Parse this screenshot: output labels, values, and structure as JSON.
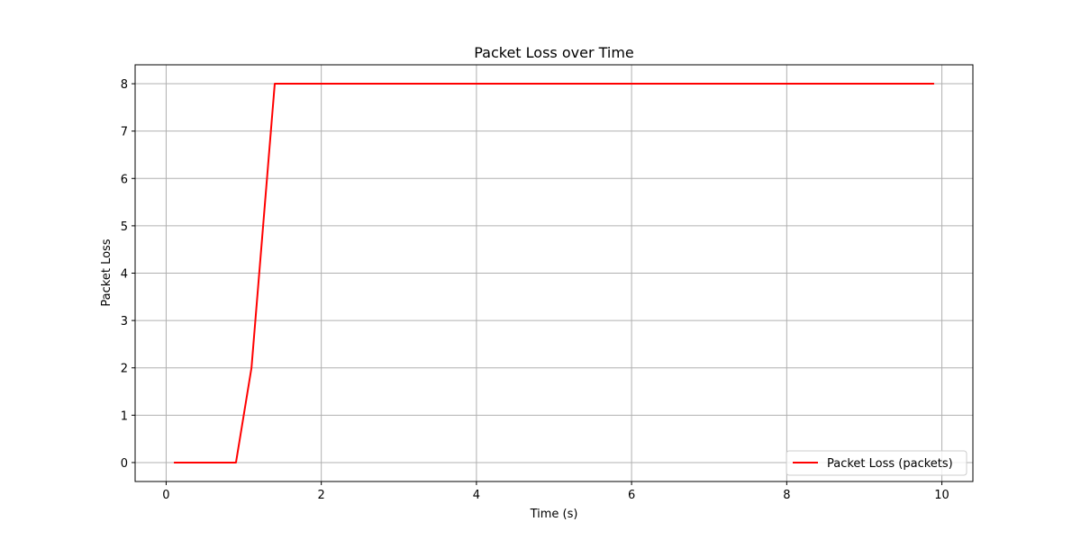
{
  "chart_data": {
    "type": "line",
    "title": "Packet Loss over Time",
    "xlabel": "Time (s)",
    "ylabel": "Packet Loss",
    "xlim": [
      -0.4,
      10.4
    ],
    "ylim": [
      -0.4,
      8.4
    ],
    "xticks": [
      0,
      2,
      4,
      6,
      8,
      10
    ],
    "yticks": [
      0,
      1,
      2,
      3,
      4,
      5,
      6,
      7,
      8
    ],
    "grid": true,
    "legend_position": "lower-right",
    "series": [
      {
        "name": "Packet Loss (packets)",
        "color": "#ff0000",
        "x": [
          0.1,
          0.9,
          1.1,
          1.4,
          9.9
        ],
        "y": [
          0,
          0,
          2,
          8,
          8
        ]
      }
    ]
  }
}
